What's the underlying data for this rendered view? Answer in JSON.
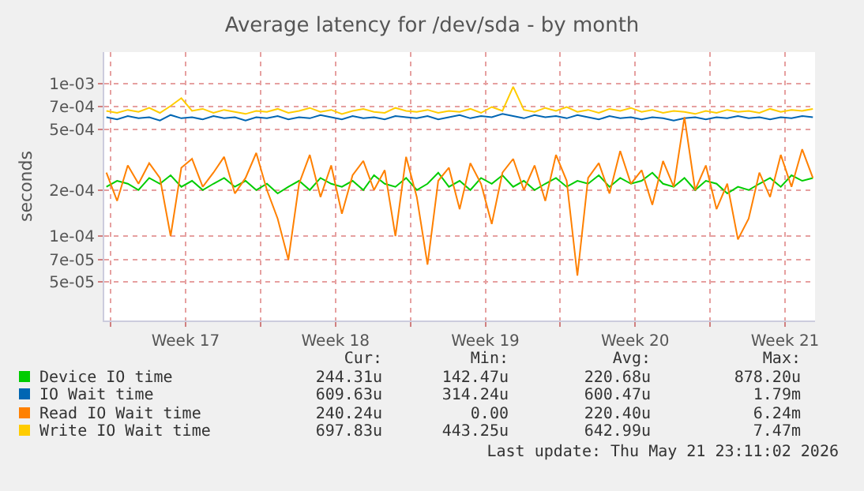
{
  "chart_data": {
    "type": "line",
    "title": "Average latency for /dev/sda - by month",
    "ylabel": "seconds",
    "x": [
      "2026-04-19T19:12",
      "2026-04-20T07:12",
      "2026-04-20T19:12",
      "2026-04-21T07:12",
      "2026-04-21T19:12",
      "2026-04-22T07:12",
      "2026-04-22T19:12",
      "2026-04-23T07:12",
      "2026-04-23T19:12",
      "2026-04-24T07:12",
      "2026-04-24T19:12",
      "2026-04-25T07:12",
      "2026-04-25T19:12",
      "2026-04-26T07:12",
      "2026-04-26T19:12",
      "2026-04-27T07:12",
      "2026-04-27T19:12",
      "2026-04-28T07:12",
      "2026-04-28T19:12",
      "2026-04-29T07:12",
      "2026-04-29T19:12",
      "2026-04-30T07:12",
      "2026-04-30T19:12",
      "2026-05-01T07:12",
      "2026-05-01T19:12",
      "2026-05-02T07:12",
      "2026-05-02T19:12",
      "2026-05-03T07:12",
      "2026-05-03T19:12",
      "2026-05-04T07:12",
      "2026-05-04T19:12",
      "2026-05-05T07:12",
      "2026-05-05T19:12",
      "2026-05-06T07:12",
      "2026-05-06T19:12",
      "2026-05-07T07:12",
      "2026-05-07T19:12",
      "2026-05-08T07:12",
      "2026-05-08T19:12",
      "2026-05-09T07:12",
      "2026-05-09T19:12",
      "2026-05-10T07:12",
      "2026-05-10T19:12",
      "2026-05-11T07:12",
      "2026-05-11T19:12",
      "2026-05-12T07:12",
      "2026-05-12T19:12",
      "2026-05-13T07:12",
      "2026-05-13T19:12",
      "2026-05-14T07:12",
      "2026-05-14T19:12",
      "2026-05-15T07:12",
      "2026-05-15T19:12",
      "2026-05-16T07:12",
      "2026-05-16T19:12",
      "2026-05-17T07:12",
      "2026-05-17T19:12",
      "2026-05-18T07:12",
      "2026-05-18T19:12",
      "2026-05-19T07:12",
      "2026-05-19T19:12",
      "2026-05-20T07:12",
      "2026-05-20T19:12",
      "2026-05-21T07:12",
      "2026-05-21T19:12",
      "2026-05-22T07:12",
      "2026-05-22T19:12"
    ],
    "series": [
      {
        "name": "Device IO time",
        "color": "#00cc00",
        "values": [
          0.00021,
          0.00023,
          0.00022,
          0.0002,
          0.00024,
          0.00022,
          0.00025,
          0.00021,
          0.00023,
          0.0002,
          0.00022,
          0.00024,
          0.00021,
          0.00023,
          0.0002,
          0.00022,
          0.00019,
          0.00021,
          0.00023,
          0.0002,
          0.00024,
          0.00022,
          0.00021,
          0.00023,
          0.0002,
          0.00025,
          0.00022,
          0.00021,
          0.00024,
          0.0002,
          0.00022,
          0.00026,
          0.00021,
          0.00023,
          0.0002,
          0.00024,
          0.00022,
          0.00025,
          0.00021,
          0.00023,
          0.0002,
          0.00022,
          0.00024,
          0.00021,
          0.00023,
          0.00022,
          0.00025,
          0.00021,
          0.00024,
          0.00022,
          0.00023,
          0.00026,
          0.00022,
          0.00021,
          0.00024,
          0.0002,
          0.00023,
          0.00022,
          0.00019,
          0.00021,
          0.0002,
          0.00022,
          0.00024,
          0.00021,
          0.00025,
          0.00023,
          0.00024
        ]
      },
      {
        "name": "IO Wait time",
        "color": "#0066b3",
        "values": [
          0.0006,
          0.00058,
          0.00061,
          0.00059,
          0.0006,
          0.00057,
          0.00062,
          0.00059,
          0.0006,
          0.00058,
          0.00061,
          0.00059,
          0.0006,
          0.00057,
          0.0006,
          0.00059,
          0.00061,
          0.00058,
          0.0006,
          0.00059,
          0.00062,
          0.0006,
          0.00058,
          0.00061,
          0.00059,
          0.0006,
          0.00058,
          0.00061,
          0.0006,
          0.00059,
          0.00061,
          0.00058,
          0.0006,
          0.00062,
          0.00059,
          0.00061,
          0.0006,
          0.00063,
          0.00061,
          0.00059,
          0.00062,
          0.0006,
          0.00061,
          0.00059,
          0.00062,
          0.0006,
          0.00058,
          0.00061,
          0.00059,
          0.0006,
          0.00058,
          0.0006,
          0.00059,
          0.00057,
          0.00059,
          0.0006,
          0.00058,
          0.0006,
          0.00059,
          0.00061,
          0.00059,
          0.0006,
          0.00058,
          0.0006,
          0.00059,
          0.00061,
          0.0006
        ]
      },
      {
        "name": "Read IO Wait time",
        "color": "#ff8000",
        "values": [
          0.00026,
          0.00017,
          0.00029,
          0.00022,
          0.0003,
          0.00024,
          0.0001,
          0.00028,
          0.00032,
          0.00021,
          0.00026,
          0.00033,
          0.00019,
          0.00024,
          0.00035,
          0.0002,
          0.00013,
          7e-05,
          0.00022,
          0.00034,
          0.00018,
          0.00029,
          0.00014,
          0.00025,
          0.00031,
          0.0002,
          0.00027,
          0.0001,
          0.00033,
          0.00018,
          6.5e-05,
          0.00023,
          0.00028,
          0.00015,
          0.0003,
          0.00022,
          0.00012,
          0.00026,
          0.00032,
          0.0002,
          0.00029,
          0.00017,
          0.00034,
          0.00023,
          5.5e-05,
          0.00024,
          0.0003,
          0.00019,
          0.00036,
          0.00022,
          0.00027,
          0.00016,
          0.00031,
          0.00021,
          0.0006,
          0.0002,
          0.00029,
          0.00015,
          0.00022,
          9.5e-05,
          0.00013,
          0.00026,
          0.00018,
          0.00034,
          0.00021,
          0.00037,
          0.00024
        ]
      },
      {
        "name": "Write IO Wait time",
        "color": "#ffcc00",
        "values": [
          0.00066,
          0.00064,
          0.00067,
          0.00065,
          0.00069,
          0.00064,
          0.00071,
          0.0008,
          0.00066,
          0.00068,
          0.00064,
          0.00067,
          0.00065,
          0.00063,
          0.00066,
          0.00065,
          0.00068,
          0.00064,
          0.00066,
          0.00069,
          0.00065,
          0.00067,
          0.00063,
          0.00066,
          0.00068,
          0.00065,
          0.00064,
          0.00069,
          0.00066,
          0.00065,
          0.00067,
          0.00064,
          0.00066,
          0.00065,
          0.00068,
          0.00064,
          0.0007,
          0.00066,
          0.00095,
          0.00067,
          0.00065,
          0.00069,
          0.00066,
          0.0007,
          0.00065,
          0.00067,
          0.00064,
          0.00068,
          0.00066,
          0.00069,
          0.00065,
          0.00067,
          0.00064,
          0.00066,
          0.00065,
          0.00063,
          0.00066,
          0.00064,
          0.00067,
          0.00065,
          0.00066,
          0.00064,
          0.00068,
          0.00065,
          0.00067,
          0.00066,
          0.00068
        ]
      }
    ],
    "log": true,
    "xlim": [
      "2026-04-19T16:48",
      "2026-05-22T21:36"
    ],
    "xticks": [
      {
        "value": "2026-04-20",
        "label": null
      },
      {
        "value": "2026-04-23T12:00",
        "label": "Week 17"
      },
      {
        "value": "2026-04-27",
        "label": null
      },
      {
        "value": "2026-04-30T12:00",
        "label": "Week 18"
      },
      {
        "value": "2026-05-04",
        "label": null
      },
      {
        "value": "2026-05-07T12:00",
        "label": "Week 19"
      },
      {
        "value": "2026-05-11",
        "label": null
      },
      {
        "value": "2026-05-14T12:00",
        "label": "Week 20"
      },
      {
        "value": "2026-05-18",
        "label": null
      },
      {
        "value": "2026-05-21T12:00",
        "label": "Week 21"
      }
    ],
    "ylim": [
      2.8e-05,
      0.0016
    ],
    "yticks": [
      {
        "value": 5e-05,
        "label": "5e-05"
      },
      {
        "value": 7e-05,
        "label": "7e-05"
      },
      {
        "value": 0.0001,
        "label": "1e-04"
      },
      {
        "value": 0.0002,
        "label": "2e-04"
      },
      {
        "value": 0.0005,
        "label": "5e-04"
      },
      {
        "value": 0.0007,
        "label": "7e-04"
      },
      {
        "value": 0.001,
        "label": "1e-03"
      }
    ],
    "grid": true,
    "legend": "bottom",
    "annotations": [
      "Cur:",
      "Min:",
      "Avg:",
      "Max:",
      "244.31u",
      "142.47u",
      "220.68u",
      "878.20u",
      "609.63u",
      "314.24u",
      "600.47u",
      "1.79m",
      "240.24u",
      "0.00",
      "220.40u",
      "6.24m",
      "697.83u",
      "443.25u",
      "642.99u",
      "7.47m",
      "Last update: Thu May 21 23:11:02 2026"
    ]
  }
}
